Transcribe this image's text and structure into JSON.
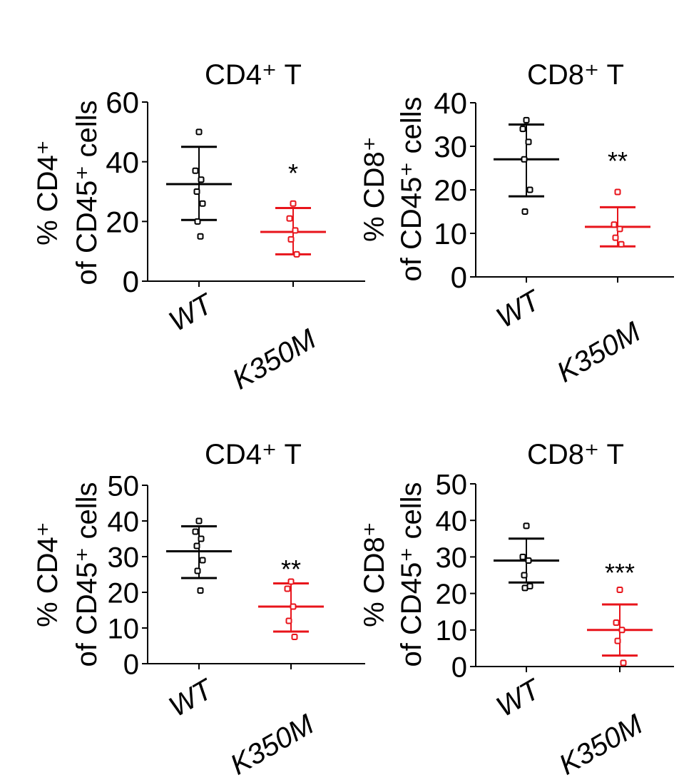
{
  "colors": {
    "wt": "#000000",
    "mut": "#e8141b",
    "axis": "#000000"
  },
  "chart_data": [
    {
      "type": "scatter",
      "title": "CD4⁺ T",
      "ylabel_line1": "% CD4⁺",
      "ylabel_line2": "of CD45⁺ cells",
      "ylim": [
        0,
        60
      ],
      "yticks": [
        0,
        20,
        40,
        60
      ],
      "categories": [
        "WT",
        "K350M"
      ],
      "series": [
        {
          "name": "WT",
          "points": [
            50,
            37,
            34,
            30,
            26,
            20,
            15
          ],
          "mean": 32.5,
          "sd_low": 20.5,
          "sd_high": 45
        },
        {
          "name": "K350M",
          "points": [
            26,
            21,
            17,
            14,
            9
          ],
          "mean": 16.5,
          "sd_low": 9,
          "sd_high": 24.5
        }
      ],
      "significance": "*"
    },
    {
      "type": "scatter",
      "title": "CD8⁺ T",
      "ylabel_line1": "% CD8⁺",
      "ylabel_line2": "of CD45⁺ cells",
      "ylim": [
        0,
        40
      ],
      "yticks": [
        0,
        10,
        20,
        30,
        40
      ],
      "categories": [
        "WT",
        "K350M"
      ],
      "series": [
        {
          "name": "WT",
          "points": [
            36,
            34,
            31,
            27,
            20,
            15
          ],
          "mean": 27,
          "sd_low": 18.5,
          "sd_high": 35
        },
        {
          "name": "K350M",
          "points": [
            19.5,
            12,
            11,
            9,
            7.5
          ],
          "mean": 11.5,
          "sd_low": 7,
          "sd_high": 16
        }
      ],
      "significance": "**"
    },
    {
      "type": "scatter",
      "title": "CD4⁺ T",
      "ylabel_line1": "% CD4⁺",
      "ylabel_line2": "of CD45⁺ cells",
      "ylim": [
        0,
        50
      ],
      "yticks": [
        0,
        10,
        20,
        30,
        40,
        50
      ],
      "categories": [
        "WT",
        "K350M"
      ],
      "series": [
        {
          "name": "WT",
          "points": [
            40,
            37,
            35,
            33,
            29,
            26,
            20.5
          ],
          "mean": 31.5,
          "sd_low": 24,
          "sd_high": 38.5
        },
        {
          "name": "K350M",
          "points": [
            23,
            21,
            16,
            12,
            7.5
          ],
          "mean": 16,
          "sd_low": 9,
          "sd_high": 22.5
        }
      ],
      "significance": "**"
    },
    {
      "type": "scatter",
      "title": "CD8⁺ T",
      "ylabel_line1": "% CD8⁺",
      "ylabel_line2": "of CD45⁺ cells",
      "ylim": [
        0,
        50
      ],
      "yticks": [
        0,
        10,
        20,
        30,
        40,
        50
      ],
      "categories": [
        "WT",
        "K350M"
      ],
      "series": [
        {
          "name": "WT",
          "points": [
            38.5,
            30,
            29,
            25,
            22,
            21.5
          ],
          "mean": 29,
          "sd_low": 23,
          "sd_high": 35
        },
        {
          "name": "K350M",
          "points": [
            21,
            12,
            10,
            7,
            1
          ],
          "mean": 10,
          "sd_low": 3,
          "sd_high": 17
        }
      ],
      "significance": "***"
    }
  ]
}
